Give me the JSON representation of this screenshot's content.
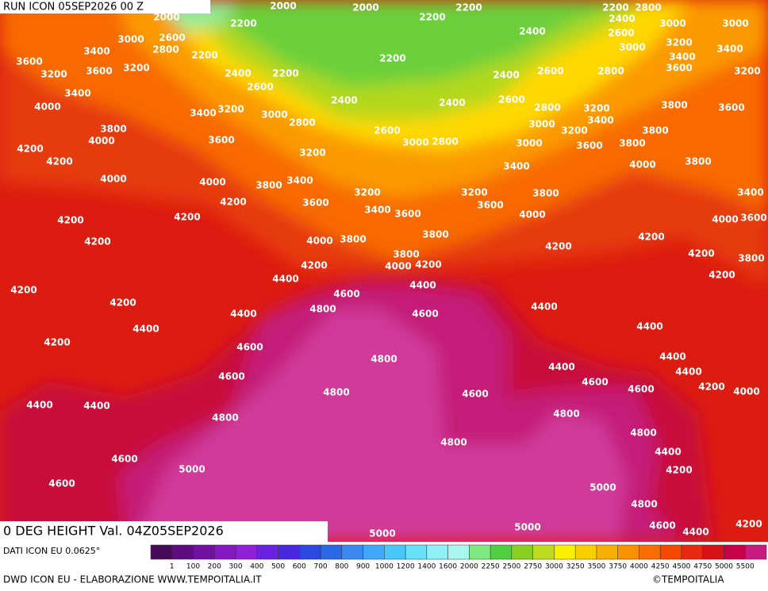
{
  "header": {
    "title": "RUN ICON 05SEP2026 00 Z"
  },
  "map": {
    "subtitle": "0 DEG HEIGHT Val. 04Z05SEP2026",
    "contour_labels": [
      "2000",
      "2000",
      "2000",
      "2200",
      "2200",
      "2200",
      "2200",
      "2800",
      "2400",
      "3000",
      "3000",
      "2600",
      "2400",
      "2600",
      "3000",
      "3200",
      "3400",
      "2800",
      "2200",
      "2200",
      "3000",
      "3400",
      "3400",
      "3600",
      "3200",
      "3600",
      "2400",
      "2200",
      "2400",
      "2600",
      "2800",
      "3600",
      "3200",
      "3200",
      "3400",
      "2600",
      "2400",
      "2400",
      "2600",
      "4000",
      "3400",
      "3200",
      "3000",
      "2800",
      "2800",
      "3200",
      "3800",
      "3600",
      "3800",
      "3000",
      "3400",
      "3200",
      "3800",
      "4000",
      "3600",
      "2600",
      "3000",
      "2800",
      "3000",
      "3600",
      "3800",
      "4200",
      "4200",
      "3200",
      "3400",
      "4000",
      "3800",
      "4000",
      "4000",
      "3800",
      "3400",
      "3200",
      "3200",
      "3800",
      "3400",
      "4200",
      "3600",
      "3400",
      "3600",
      "3600",
      "4000",
      "4200",
      "4200",
      "4000",
      "3600",
      "3800",
      "3800",
      "4000",
      "4200",
      "4200",
      "4200",
      "4200",
      "3800",
      "3800",
      "4000",
      "4200",
      "4200",
      "4200",
      "4400",
      "4400",
      "4600",
      "4200",
      "4200",
      "4800",
      "4400",
      "4600",
      "4400",
      "4400",
      "4400",
      "4200",
      "4600",
      "4800",
      "4400",
      "4600",
      "4400",
      "4400",
      "4800",
      "4600",
      "4600",
      "4600",
      "4200",
      "4000",
      "4400",
      "4400",
      "4800",
      "4800",
      "4800",
      "4800",
      "4400",
      "4600",
      "4200",
      "5000",
      "4600",
      "5000",
      "4800",
      "5000",
      "5000",
      "4600",
      "4400",
      "4200"
    ]
  },
  "footer": {
    "source": "DATI ICON EU 0.0625°",
    "credit": "DWD ICON EU - ELABORAZIONE WWW.TEMPOITALIA.IT",
    "copyright": "©TEMPOITALIA"
  },
  "legend": {
    "labels": [
      "1",
      "100",
      "200",
      "300",
      "400",
      "500",
      "600",
      "700",
      "800",
      "900",
      "1000",
      "1200",
      "1400",
      "1600",
      "2000",
      "2250",
      "2500",
      "2750",
      "3000",
      "3250",
      "3500",
      "3750",
      "4000",
      "4250",
      "4500",
      "4750",
      "5000",
      "5500"
    ],
    "colors": [
      "#4a0a5a",
      "#5e0c80",
      "#7010a0",
      "#8418c0",
      "#9020d8",
      "#6a20e0",
      "#4a28e0",
      "#2a48e0",
      "#2a68e8",
      "#3a88f0",
      "#40a8f8",
      "#48c8f8",
      "#68e0f8",
      "#90f0f8",
      "#a8f8f0",
      "#80e880",
      "#50d040",
      "#88d020",
      "#c0dc20",
      "#f8f000",
      "#f8d000",
      "#f8b000",
      "#f89000",
      "#f86c00",
      "#f84800",
      "#e82810",
      "#d81018",
      "#c80048",
      "#c81a80"
    ]
  }
}
